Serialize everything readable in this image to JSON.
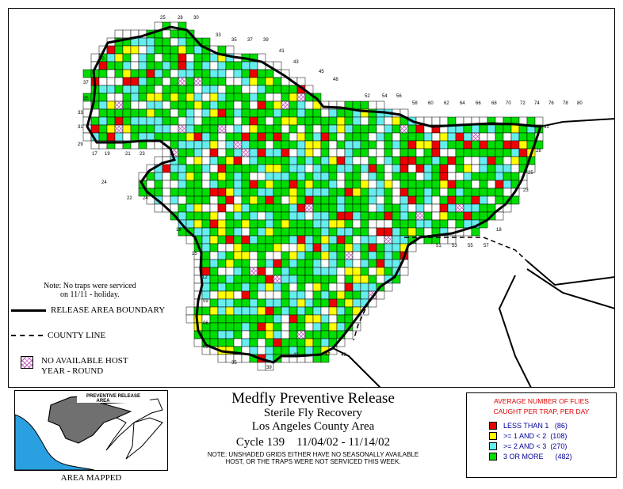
{
  "map": {
    "note_line1": "Note: No traps were serviced",
    "note_line2": "on 11/11 - holiday.",
    "legend_release_boundary": "RELEASE AREA BOUNDARY",
    "legend_county_line": "COUNTY LINE",
    "legend_no_host_line1": "NO AVAILABLE HOST",
    "legend_no_host_line2": "YEAR - ROUND",
    "grid_numbers": [
      "25",
      "28",
      "30",
      "33",
      "35",
      "37",
      "39",
      "41",
      "43",
      "45",
      "48",
      "52",
      "54",
      "56",
      "58",
      "60",
      "62",
      "64",
      "66",
      "68",
      "70",
      "72",
      "74",
      "76",
      "78",
      "80",
      "20",
      "40",
      "37",
      "35",
      "33",
      "31",
      "29",
      "17",
      "19",
      "21",
      "23",
      "24",
      "22",
      "24",
      "18",
      "15",
      "12",
      "09",
      "06",
      "03",
      "35",
      "39",
      "43",
      "47",
      "49",
      "51",
      "53",
      "55",
      "57",
      "31",
      "28",
      "25",
      "23",
      "18"
    ],
    "colors": {
      "red": "#ee0000",
      "yellow": "#ffff00",
      "cyan": "#66eeee",
      "green": "#00dd00",
      "hatch": "#c060c0",
      "boundary": "#000000"
    }
  },
  "inset": {
    "label": "PREVENTIVE RELEASE AREA",
    "caption": "AREA MAPPED"
  },
  "title": {
    "line1": "Medfly Preventive Release",
    "line2": "Sterile Fly Recovery",
    "line3": "Los Angeles County Area",
    "cycle": "Cycle 139",
    "dates": "11/04/02 - 11/14/02",
    "note_line1": "NOTE: UNSHADED GRIDS EITHER HAVE NO SEASONALLY AVAILABLE",
    "note_line2": "HOST, OR THE TRAPS WERE NOT SERVICED THIS WEEK."
  },
  "legend": {
    "header_line1": "AVERAGE NUMBER OF FLIES",
    "header_line2": "CAUGHT PER TRAP, PER DAY",
    "items": [
      {
        "label": "LESS THAN 1",
        "count": "(86)",
        "color": "#ee0000"
      },
      {
        "label": ">= 1 AND < 2",
        "count": "(108)",
        "color": "#ffff00"
      },
      {
        "label": ">= 2 AND < 3",
        "count": "(270)",
        "color": "#66eeee"
      },
      {
        "label": "3 OR MORE",
        "count": "(482)",
        "color": "#00dd00"
      }
    ]
  }
}
